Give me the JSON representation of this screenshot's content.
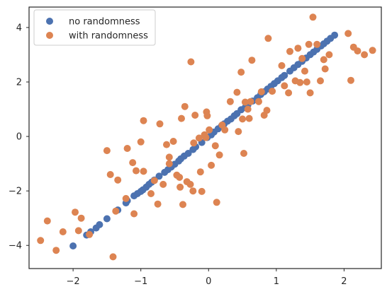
{
  "chart_data": {
    "type": "scatter",
    "title": "",
    "xlabel": "",
    "ylabel": "",
    "xlim": [
      -2.65,
      2.55
    ],
    "ylim": [
      -4.85,
      4.75
    ],
    "xticks": [
      -2,
      -1,
      0,
      1,
      2
    ],
    "yticks": [
      -4,
      -2,
      0,
      2,
      4
    ],
    "xtick_labels": [
      "−2",
      "−1",
      "0",
      "1",
      "2"
    ],
    "ytick_labels": [
      "−4",
      "−2",
      "0",
      "2",
      "4"
    ],
    "grid": false,
    "legend_position": "upper-left",
    "series": [
      {
        "name": "no randomness",
        "color": "#4c72b0",
        "points": [
          [
            -2.0,
            -4.02
          ],
          [
            -1.8,
            -3.62
          ],
          [
            -1.74,
            -3.5
          ],
          [
            -1.66,
            -3.36
          ],
          [
            -1.61,
            -3.24
          ],
          [
            -1.5,
            -3.02
          ],
          [
            -1.34,
            -2.7
          ],
          [
            -1.22,
            -2.44
          ],
          [
            -1.2,
            -2.36
          ],
          [
            -1.1,
            -2.18
          ],
          [
            -1.05,
            -2.1
          ],
          [
            -1.0,
            -2.02
          ],
          [
            -0.97,
            -1.96
          ],
          [
            -0.92,
            -1.86
          ],
          [
            -0.88,
            -1.76
          ],
          [
            -0.84,
            -1.68
          ],
          [
            -0.8,
            -1.6
          ],
          [
            -0.73,
            -1.46
          ],
          [
            -0.65,
            -1.32
          ],
          [
            -0.6,
            -1.22
          ],
          [
            -0.55,
            -1.12
          ],
          [
            -0.5,
            -1.02
          ],
          [
            -0.44,
            -0.9
          ],
          [
            -0.41,
            -0.82
          ],
          [
            -0.36,
            -0.72
          ],
          [
            -0.3,
            -0.62
          ],
          [
            -0.23,
            -0.48
          ],
          [
            -0.19,
            -0.38
          ],
          [
            -0.1,
            -0.22
          ],
          [
            -0.02,
            -0.04
          ],
          [
            0.04,
            0.06
          ],
          [
            0.08,
            0.16
          ],
          [
            0.14,
            0.28
          ],
          [
            0.19,
            0.38
          ],
          [
            0.23,
            0.46
          ],
          [
            0.28,
            0.56
          ],
          [
            0.33,
            0.64
          ],
          [
            0.38,
            0.76
          ],
          [
            0.42,
            0.84
          ],
          [
            0.48,
            0.98
          ],
          [
            0.54,
            1.06
          ],
          [
            0.58,
            1.16
          ],
          [
            0.65,
            1.3
          ],
          [
            0.72,
            1.42
          ],
          [
            0.77,
            1.54
          ],
          [
            0.82,
            1.64
          ],
          [
            0.87,
            1.74
          ],
          [
            0.92,
            1.84
          ],
          [
            0.97,
            1.94
          ],
          [
            1.02,
            2.04
          ],
          [
            1.08,
            2.16
          ],
          [
            1.12,
            2.24
          ],
          [
            1.2,
            2.4
          ],
          [
            1.26,
            2.52
          ],
          [
            1.32,
            2.64
          ],
          [
            1.38,
            2.76
          ],
          [
            1.44,
            2.88
          ],
          [
            1.5,
            3.0
          ],
          [
            1.55,
            3.1
          ],
          [
            1.6,
            3.2
          ],
          [
            1.66,
            3.32
          ],
          [
            1.7,
            3.4
          ],
          [
            1.75,
            3.5
          ],
          [
            1.8,
            3.6
          ],
          [
            1.86,
            3.72
          ]
        ]
      },
      {
        "name": "with randomness",
        "color": "#dd8452",
        "points": [
          [
            -2.48,
            -3.82
          ],
          [
            -2.38,
            -3.1
          ],
          [
            -2.25,
            -4.18
          ],
          [
            -2.15,
            -3.5
          ],
          [
            -1.97,
            -2.78
          ],
          [
            -1.92,
            -3.46
          ],
          [
            -1.88,
            -3.0
          ],
          [
            -1.76,
            -3.6
          ],
          [
            -1.5,
            -0.52
          ],
          [
            -1.45,
            -1.4
          ],
          [
            -1.41,
            -4.42
          ],
          [
            -1.37,
            -2.74
          ],
          [
            -1.34,
            -1.6
          ],
          [
            -1.22,
            -2.28
          ],
          [
            -1.2,
            -0.44
          ],
          [
            -1.12,
            -0.96
          ],
          [
            -1.1,
            -2.84
          ],
          [
            -1.07,
            -1.26
          ],
          [
            -1.0,
            -0.2
          ],
          [
            -0.96,
            0.58
          ],
          [
            -0.96,
            -1.28
          ],
          [
            -0.85,
            -2.1
          ],
          [
            -0.8,
            -1.62
          ],
          [
            -0.75,
            -2.48
          ],
          [
            -0.72,
            0.46
          ],
          [
            -0.67,
            -1.76
          ],
          [
            -0.62,
            -0.3
          ],
          [
            -0.58,
            -0.76
          ],
          [
            -0.58,
            -1.0
          ],
          [
            -0.52,
            -0.18
          ],
          [
            -0.47,
            -1.42
          ],
          [
            -0.43,
            -1.5
          ],
          [
            -0.42,
            -1.86
          ],
          [
            -0.4,
            0.66
          ],
          [
            -0.38,
            -2.5
          ],
          [
            -0.35,
            1.1
          ],
          [
            -0.32,
            -1.66
          ],
          [
            -0.27,
            -1.76
          ],
          [
            -0.26,
            2.74
          ],
          [
            -0.23,
            -2.0
          ],
          [
            -0.22,
            -0.24
          ],
          [
            -0.2,
            0.78
          ],
          [
            -0.14,
            -0.06
          ],
          [
            -0.12,
            -1.3
          ],
          [
            -0.1,
            -2.02
          ],
          [
            -0.06,
            0.06
          ],
          [
            -0.04,
            -0.04
          ],
          [
            -0.03,
            0.9
          ],
          [
            -0.02,
            0.76
          ],
          [
            0.01,
            0.24
          ],
          [
            0.04,
            -1.06
          ],
          [
            0.1,
            -0.34
          ],
          [
            0.12,
            -2.42
          ],
          [
            0.16,
            -0.68
          ],
          [
            0.2,
            0.42
          ],
          [
            0.24,
            0.24
          ],
          [
            0.32,
            1.28
          ],
          [
            0.42,
            1.62
          ],
          [
            0.44,
            0.18
          ],
          [
            0.48,
            2.36
          ],
          [
            0.5,
            0.64
          ],
          [
            0.52,
            -0.62
          ],
          [
            0.54,
            1.26
          ],
          [
            0.58,
            1.0
          ],
          [
            0.6,
            0.66
          ],
          [
            0.62,
            1.28
          ],
          [
            0.64,
            2.8
          ],
          [
            0.74,
            1.28
          ],
          [
            0.78,
            1.64
          ],
          [
            0.82,
            0.78
          ],
          [
            0.86,
            0.96
          ],
          [
            0.88,
            3.6
          ],
          [
            0.94,
            1.66
          ],
          [
            1.08,
            2.6
          ],
          [
            1.12,
            1.86
          ],
          [
            1.18,
            1.6
          ],
          [
            1.2,
            3.12
          ],
          [
            1.28,
            2.04
          ],
          [
            1.32,
            3.24
          ],
          [
            1.35,
            1.98
          ],
          [
            1.38,
            2.86
          ],
          [
            1.42,
            2.4
          ],
          [
            1.45,
            2.0
          ],
          [
            1.48,
            3.38
          ],
          [
            1.5,
            1.6
          ],
          [
            1.54,
            4.38
          ],
          [
            1.6,
            3.38
          ],
          [
            1.65,
            2.04
          ],
          [
            1.7,
            2.82
          ],
          [
            1.72,
            2.48
          ],
          [
            1.78,
            3.0
          ],
          [
            2.06,
            3.78
          ],
          [
            2.1,
            2.06
          ],
          [
            2.14,
            3.28
          ],
          [
            2.2,
            3.14
          ],
          [
            2.3,
            3.0
          ],
          [
            2.42,
            3.16
          ]
        ]
      }
    ]
  }
}
